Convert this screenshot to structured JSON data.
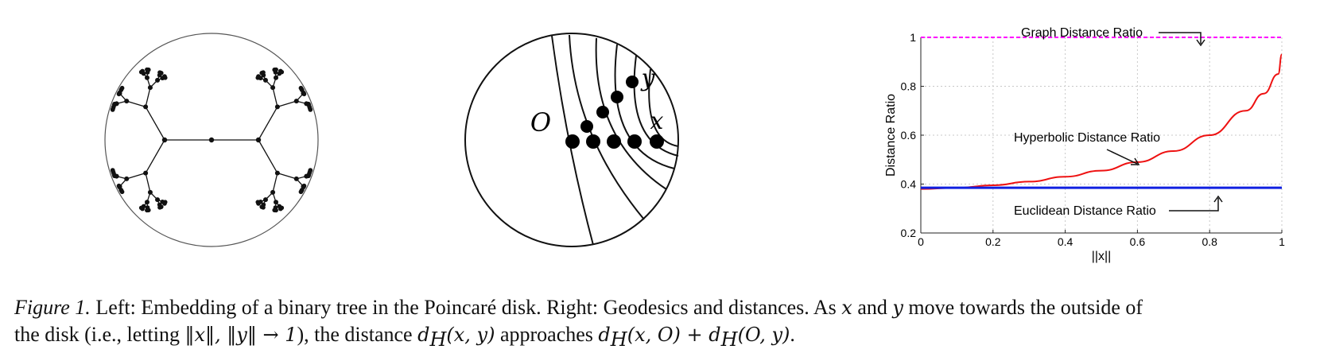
{
  "panels": {
    "tree": {
      "point_labels": []
    },
    "geodesics": {
      "labels": {
        "origin": "O",
        "x": "x",
        "y": "y"
      }
    },
    "ratio_chart": {
      "ylabel": "Distance Ratio",
      "xlabel": "||x||",
      "xticks": [
        "0",
        "0.2",
        "0.4",
        "0.6",
        "0.8",
        "1"
      ],
      "yticks": [
        "0.2",
        "0.4",
        "0.6",
        "0.8",
        "1"
      ],
      "annotations": {
        "graph": "Graph Distance Ratio",
        "hyperbolic": "Hyperbolic Distance Ratio",
        "euclidean": "Euclidean Distance Ratio"
      },
      "colors": {
        "graph": "#ff00ff",
        "hyperbolic": "#ee1111",
        "euclidean": "#1020e0"
      }
    }
  },
  "chart_data": {
    "type": "line",
    "xlabel": "||x||",
    "ylabel": "Distance Ratio",
    "xlim": [
      0,
      1
    ],
    "ylim": [
      0.2,
      1
    ],
    "grid": true,
    "series": [
      {
        "name": "Graph Distance Ratio",
        "style": "dashed",
        "x": [
          0,
          1
        ],
        "y": [
          1,
          1
        ]
      },
      {
        "name": "Hyperbolic Distance Ratio",
        "style": "solid",
        "x": [
          0,
          0.1,
          0.2,
          0.3,
          0.4,
          0.5,
          0.6,
          0.7,
          0.8,
          0.9,
          0.95,
          0.99,
          1.0
        ],
        "y": [
          0.38,
          0.385,
          0.395,
          0.41,
          0.43,
          0.455,
          0.49,
          0.535,
          0.6,
          0.7,
          0.77,
          0.85,
          0.93
        ]
      },
      {
        "name": "Euclidean Distance Ratio",
        "style": "solid",
        "x": [
          0,
          1
        ],
        "y": [
          0.385,
          0.385
        ]
      }
    ]
  },
  "caption": {
    "label": "Figure 1.",
    "line1_a": " Left: Embedding of a binary tree in the Poincaré disk. Right: Geodesics and distances. As ",
    "x": "x",
    "and": " and ",
    "y": "y",
    "line1_b": " move towards the outside of",
    "line2_a": "the disk (i.e., letting ",
    "norms": "‖x‖, ‖y‖ → 1",
    "line2_b": "), the distance ",
    "dxy": "d",
    "H": "H",
    "args1": "(x, y)",
    "approaches": " approaches ",
    "d1": "d",
    "args2": "(x, O)",
    "plus": " + ",
    "d2": "d",
    "args3": "(O, y)",
    "end": "."
  }
}
